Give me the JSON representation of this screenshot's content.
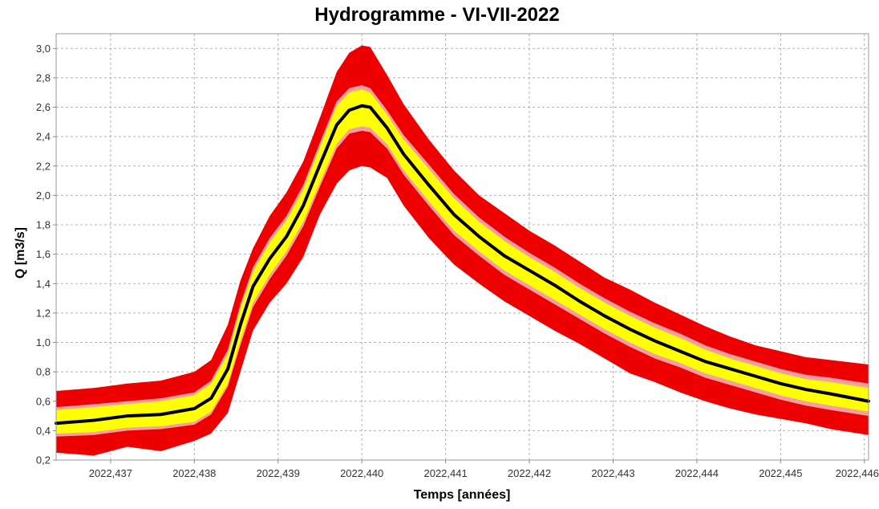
{
  "chart_data": {
    "type": "area",
    "title": "Hydrogramme - VI-VII-2022",
    "xlabel": "Temps [années]",
    "ylabel": "Q [m3/s]",
    "xlim": [
      2022.43635,
      2022.44605
    ],
    "ylim": [
      0.2,
      3.1
    ],
    "x_ticks": [
      2022.437,
      2022.438,
      2022.439,
      2022.44,
      2022.441,
      2022.442,
      2022.443,
      2022.444,
      2022.445,
      2022.446
    ],
    "x_tick_labels": [
      "2022,437",
      "2022,438",
      "2022,439",
      "2022,440",
      "2022,441",
      "2022,442",
      "2022,443",
      "2022,444",
      "2022,445",
      "2022,446"
    ],
    "y_ticks": [
      0.2,
      0.4,
      0.6,
      0.8,
      1.0,
      1.2,
      1.4,
      1.6,
      1.8,
      2.0,
      2.2,
      2.4,
      2.6,
      2.8,
      3.0
    ],
    "y_tick_labels": [
      "0,2",
      "0,4",
      "0,6",
      "0,8",
      "1,0",
      "1,2",
      "1,4",
      "1,6",
      "1,8",
      "2,0",
      "2,2",
      "2,4",
      "2,6",
      "2,8",
      "3,0"
    ],
    "grid": true,
    "colors": {
      "outer_band": "#ee0000",
      "mid_band": "#f4a0a0",
      "inner_band": "#ffff00",
      "median_line": "#000000",
      "grid": "#b0b0b0",
      "plot_border": "#999999"
    },
    "x": [
      2022.43635,
      2022.4368,
      2022.4372,
      2022.4376,
      2022.438,
      2022.4382,
      2022.4384,
      2022.43855,
      2022.4387,
      2022.4389,
      2022.4391,
      2022.4393,
      2022.4395,
      2022.4397,
      2022.43985,
      2022.44,
      2022.4401,
      2022.4403,
      2022.4405,
      2022.4408,
      2022.4411,
      2022.4414,
      2022.4417,
      2022.442,
      2022.4423,
      2022.4426,
      2022.4429,
      2022.4432,
      2022.4435,
      2022.4438,
      2022.4441,
      2022.4444,
      2022.4447,
      2022.445,
      2022.4453,
      2022.4456,
      2022.44605
    ],
    "series": [
      {
        "role": "outer_upper",
        "values": [
          0.67,
          0.69,
          0.72,
          0.74,
          0.8,
          0.88,
          1.12,
          1.42,
          1.64,
          1.86,
          2.02,
          2.23,
          2.53,
          2.84,
          2.97,
          3.02,
          3.01,
          2.82,
          2.62,
          2.38,
          2.17,
          2.0,
          1.88,
          1.76,
          1.66,
          1.55,
          1.44,
          1.36,
          1.27,
          1.19,
          1.11,
          1.04,
          0.98,
          0.94,
          0.9,
          0.88,
          0.85
        ]
      },
      {
        "role": "mid_upper",
        "values": [
          0.56,
          0.58,
          0.6,
          0.62,
          0.66,
          0.74,
          0.95,
          1.26,
          1.51,
          1.71,
          1.86,
          2.07,
          2.36,
          2.64,
          2.73,
          2.75,
          2.73,
          2.58,
          2.41,
          2.21,
          2.01,
          1.85,
          1.72,
          1.61,
          1.51,
          1.4,
          1.3,
          1.21,
          1.13,
          1.06,
          0.98,
          0.92,
          0.87,
          0.82,
          0.78,
          0.76,
          0.72
        ]
      },
      {
        "role": "inner_upper",
        "values": [
          0.54,
          0.56,
          0.58,
          0.6,
          0.64,
          0.72,
          0.92,
          1.23,
          1.48,
          1.68,
          1.83,
          2.04,
          2.33,
          2.61,
          2.7,
          2.72,
          2.7,
          2.55,
          2.38,
          2.18,
          1.98,
          1.82,
          1.69,
          1.58,
          1.48,
          1.37,
          1.27,
          1.18,
          1.1,
          1.03,
          0.95,
          0.89,
          0.84,
          0.79,
          0.75,
          0.73,
          0.69
        ]
      },
      {
        "role": "median",
        "values": [
          0.45,
          0.47,
          0.5,
          0.51,
          0.55,
          0.62,
          0.82,
          1.12,
          1.38,
          1.57,
          1.72,
          1.93,
          2.21,
          2.48,
          2.58,
          2.61,
          2.6,
          2.46,
          2.28,
          2.07,
          1.87,
          1.72,
          1.59,
          1.49,
          1.39,
          1.28,
          1.18,
          1.09,
          1.01,
          0.94,
          0.87,
          0.82,
          0.77,
          0.72,
          0.68,
          0.65,
          0.6
        ]
      },
      {
        "role": "inner_lower",
        "values": [
          0.38,
          0.39,
          0.42,
          0.43,
          0.46,
          0.53,
          0.72,
          1.01,
          1.27,
          1.46,
          1.62,
          1.82,
          2.09,
          2.35,
          2.45,
          2.47,
          2.46,
          2.35,
          2.17,
          1.96,
          1.76,
          1.62,
          1.49,
          1.39,
          1.29,
          1.19,
          1.09,
          1.0,
          0.92,
          0.86,
          0.79,
          0.74,
          0.69,
          0.64,
          0.6,
          0.57,
          0.53
        ]
      },
      {
        "role": "mid_lower",
        "values": [
          0.36,
          0.37,
          0.4,
          0.41,
          0.44,
          0.51,
          0.7,
          0.98,
          1.24,
          1.43,
          1.59,
          1.79,
          2.06,
          2.32,
          2.42,
          2.44,
          2.43,
          2.32,
          2.14,
          1.93,
          1.73,
          1.59,
          1.46,
          1.36,
          1.26,
          1.16,
          1.06,
          0.97,
          0.89,
          0.83,
          0.76,
          0.71,
          0.66,
          0.61,
          0.57,
          0.54,
          0.5
        ]
      },
      {
        "role": "outer_lower",
        "values": [
          0.25,
          0.23,
          0.29,
          0.26,
          0.33,
          0.38,
          0.52,
          0.8,
          1.08,
          1.27,
          1.4,
          1.58,
          1.87,
          2.08,
          2.17,
          2.2,
          2.19,
          2.12,
          1.93,
          1.71,
          1.53,
          1.4,
          1.28,
          1.18,
          1.08,
          0.99,
          0.89,
          0.79,
          0.73,
          0.66,
          0.6,
          0.55,
          0.51,
          0.48,
          0.45,
          0.41,
          0.37
        ]
      }
    ]
  }
}
